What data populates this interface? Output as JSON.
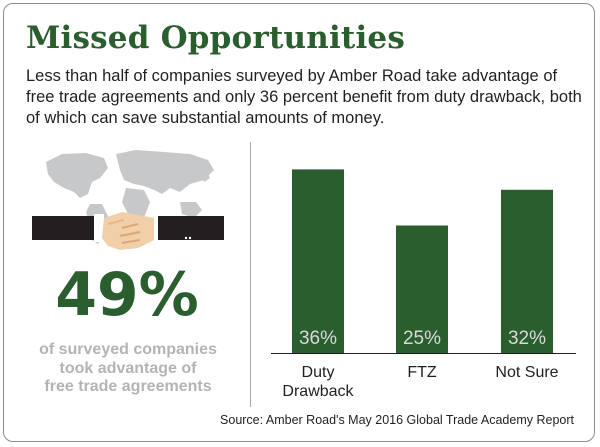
{
  "title": "Missed Opportunities",
  "subtitle": "Less than half of companies surveyed by Amber Road take advantage of free trade agreements and only 36 percent benefit from duty drawback, both of which can save substantial amounts of money.",
  "highlight": {
    "value": "49%",
    "caption_lines": [
      "of surveyed companies",
      "took advantage of",
      "free trade agreements"
    ]
  },
  "illustration_icons": [
    "world-map-icon",
    "handshake-icon"
  ],
  "source": "Source: Amber Road's May 2016 Global Trade Academy Report",
  "colors": {
    "accent": "#2b5e2e",
    "caption": "#b4b4b4",
    "bar_label": "#d9d9d9"
  },
  "chart_data": {
    "type": "bar",
    "categories": [
      [
        "Duty",
        "Drawback"
      ],
      [
        "FTZ"
      ],
      [
        "Not Sure"
      ]
    ],
    "values": [
      36,
      25,
      32
    ],
    "data_labels": [
      "36%",
      "25%",
      "32%"
    ],
    "unit": "%",
    "title": "",
    "xlabel": "",
    "ylabel": "",
    "ylim": [
      0,
      40
    ],
    "grid": false,
    "legend": "none",
    "bar_color": "#2b5e2e"
  }
}
